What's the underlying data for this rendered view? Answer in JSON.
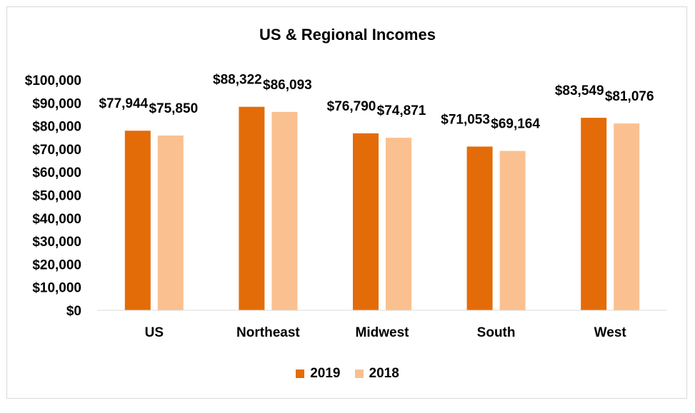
{
  "chart_data": {
    "type": "bar",
    "title": "US & Regional Incomes",
    "categories": [
      "US",
      "Northeast",
      "Midwest",
      "South",
      "West"
    ],
    "series": [
      {
        "name": "2019",
        "values": [
          77944,
          88322,
          76790,
          71053,
          83549
        ],
        "labels": [
          "$77,944",
          "$88,322",
          "$76,790",
          "$71,053",
          "$83,549"
        ],
        "color": "#E36C09"
      },
      {
        "name": "2018",
        "values": [
          75850,
          86093,
          74871,
          69164,
          81076
        ],
        "labels": [
          "$75,850",
          "$86,093",
          "$74,871",
          "$69,164",
          "$81,076"
        ],
        "color": "#FAC090"
      }
    ],
    "ylim": [
      0,
      100000
    ],
    "yticks": [
      0,
      10000,
      20000,
      30000,
      40000,
      50000,
      60000,
      70000,
      80000,
      90000,
      100000
    ],
    "ytick_labels": [
      "$0",
      "$10,000",
      "$20,000",
      "$30,000",
      "$40,000",
      "$50,000",
      "$60,000",
      "$70,000",
      "$80,000",
      "$90,000",
      "$100,000"
    ],
    "grid": false,
    "legend": "bottom"
  }
}
